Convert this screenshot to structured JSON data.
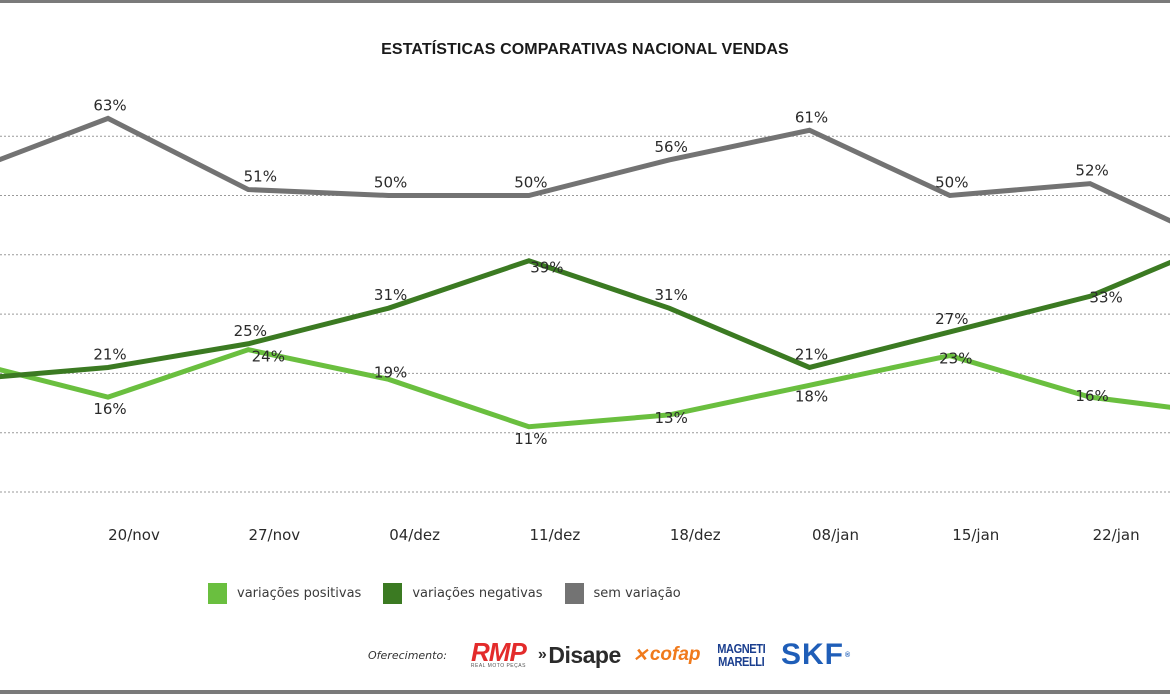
{
  "header": {
    "title": "ESTATÍSTICAS COMPARATIVAS NACIONAL VENDAS"
  },
  "chart_data": {
    "type": "line",
    "title": "ESTATÍSTICAS COMPARATIVAS NACIONAL VENDAS",
    "xlabel": "",
    "ylabel": "",
    "unit": "%",
    "ylim": [
      0,
      60
    ],
    "y_gridlines": [
      0,
      10,
      20,
      30,
      40,
      50,
      60
    ],
    "grid": true,
    "grid_style": "dotted",
    "categories": [
      "20/nov",
      "27/nov",
      "04/dez",
      "11/dez",
      "18/dez",
      "08/jan",
      "15/jan",
      "22/jan"
    ],
    "clipped_left_values": {
      "variacoes_positivas": 22,
      "variacoes_negativas": 19,
      "sem_variacao": 54
    },
    "clipped_right_values": {
      "variacoes_positivas": 13,
      "variacoes_negativas": 43,
      "sem_variacao": 41
    },
    "series": [
      {
        "name": "variações positivas",
        "key": "variacoes_positivas",
        "color": "#6abf3f",
        "values": [
          16,
          24,
          19,
          11,
          13,
          18,
          23,
          16
        ]
      },
      {
        "name": "variações negativas",
        "key": "variacoes_negativas",
        "color": "#3b7a22",
        "values": [
          21,
          25,
          31,
          39,
          31,
          21,
          27,
          33
        ]
      },
      {
        "name": "sem variação",
        "key": "sem_variacao",
        "color": "#737373",
        "values": [
          63,
          51,
          50,
          50,
          56,
          61,
          50,
          52
        ]
      }
    ],
    "legend": {
      "placement": "bottom-center",
      "entries": [
        "variações positivas",
        "variações negativas",
        "sem variação"
      ]
    }
  },
  "footer": {
    "sponsor_label": "Oferecimento:",
    "sponsors": [
      {
        "name": "RMP",
        "subtitle": "REAL MOTO PEÇAS",
        "icon": "rmp-logo",
        "color": "#e32b2b"
      },
      {
        "name": "Disape",
        "icon": "disape-logo",
        "color": "#2b2b2b"
      },
      {
        "name": "cofap",
        "icon": "cofap-logo",
        "color": "#f07a1c"
      },
      {
        "name": "MAGNETI MARELLI",
        "line1": "MAGNETI",
        "line2": "MARELLI",
        "icon": "magneti-marelli-logo",
        "color": "#1b3f8f"
      },
      {
        "name": "SKF",
        "icon": "skf-logo",
        "color": "#1f5eb8"
      }
    ]
  }
}
